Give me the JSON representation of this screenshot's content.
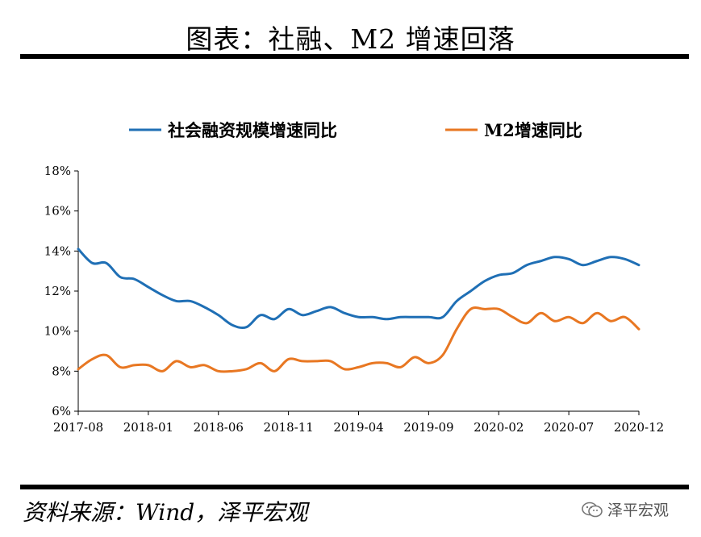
{
  "page": {
    "title": "图表：社融、M2 增速回落",
    "source": "资料来源：Wind，泽平宏观",
    "watermark": "泽平宏观"
  },
  "colors": {
    "blue": "#1f6fb5",
    "orange": "#e87722",
    "axis": "#000000"
  },
  "chart_data": {
    "type": "line",
    "title": "",
    "xlabel": "",
    "ylabel": "",
    "ylim": [
      6,
      18
    ],
    "yticks": [
      "6%",
      "8%",
      "10%",
      "12%",
      "14%",
      "16%",
      "18%"
    ],
    "xtick_labels": [
      "2017-08",
      "2018-01",
      "2018-06",
      "2018-11",
      "2019-04",
      "2019-09",
      "2020-02",
      "2020-07",
      "2020-12"
    ],
    "x": [
      "2017-08",
      "2017-09",
      "2017-10",
      "2017-11",
      "2017-12",
      "2018-01",
      "2018-02",
      "2018-03",
      "2018-04",
      "2018-05",
      "2018-06",
      "2018-07",
      "2018-08",
      "2018-09",
      "2018-10",
      "2018-11",
      "2018-12",
      "2019-01",
      "2019-02",
      "2019-03",
      "2019-04",
      "2019-05",
      "2019-06",
      "2019-07",
      "2019-08",
      "2019-09",
      "2019-10",
      "2019-11",
      "2019-12",
      "2020-01",
      "2020-02",
      "2020-03",
      "2020-04",
      "2020-05",
      "2020-06",
      "2020-07",
      "2020-08",
      "2020-09",
      "2020-10",
      "2020-11",
      "2020-12"
    ],
    "legend_position": "top",
    "series": [
      {
        "name": "社会融资规模增速同比",
        "color": "#1f6fb5",
        "values": [
          14.1,
          13.4,
          13.4,
          12.7,
          12.6,
          12.2,
          11.8,
          11.5,
          11.5,
          11.2,
          10.8,
          10.3,
          10.2,
          10.8,
          10.6,
          11.1,
          10.8,
          11.0,
          11.2,
          10.9,
          10.7,
          10.7,
          10.6,
          10.7,
          10.7,
          10.7,
          10.7,
          11.5,
          12.0,
          12.5,
          12.8,
          12.9,
          13.3,
          13.5,
          13.7,
          13.6,
          13.3,
          13.5,
          13.7,
          13.6,
          13.3
        ]
      },
      {
        "name": "M2增速同比",
        "color": "#e87722",
        "values": [
          8.1,
          8.6,
          8.8,
          8.2,
          8.3,
          8.3,
          8.0,
          8.5,
          8.2,
          8.3,
          8.0,
          8.0,
          8.1,
          8.4,
          8.0,
          8.6,
          8.5,
          8.5,
          8.5,
          8.1,
          8.2,
          8.4,
          8.4,
          8.2,
          8.7,
          8.4,
          8.8,
          10.1,
          11.1,
          11.1,
          11.1,
          10.7,
          10.4,
          10.9,
          10.5,
          10.7,
          10.4,
          10.9,
          10.5,
          10.7,
          10.1
        ]
      }
    ]
  }
}
